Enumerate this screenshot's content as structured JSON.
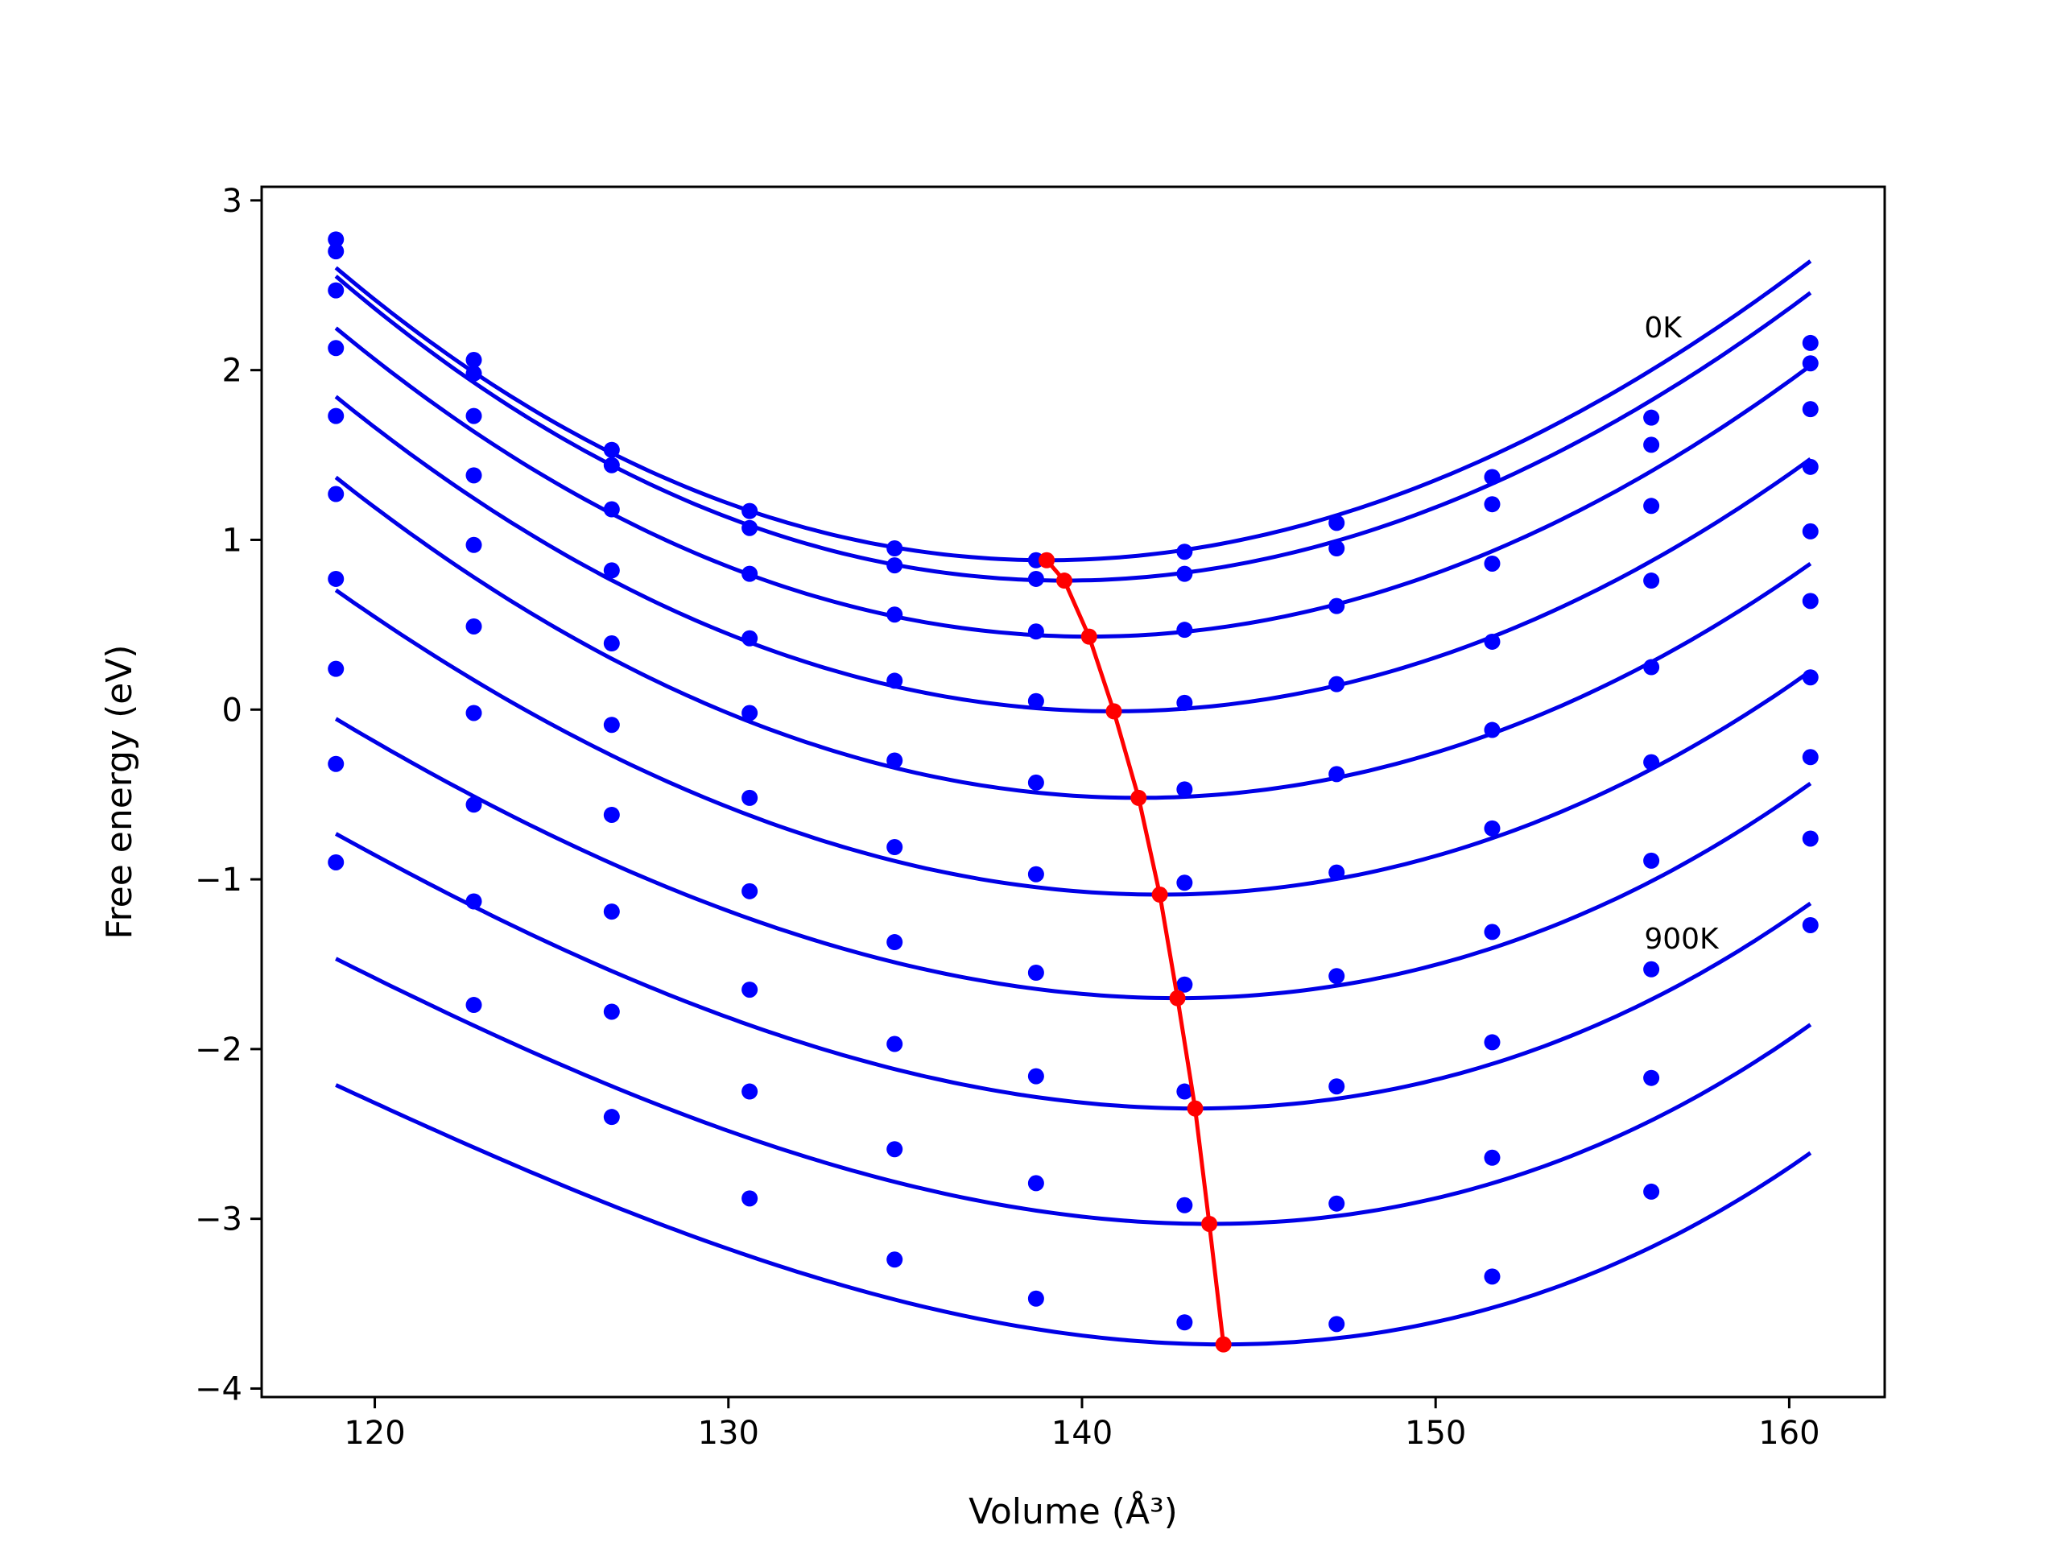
{
  "chart_data": {
    "type": "scatter",
    "xlabel": "Volume (Å³)",
    "ylabel": "Free energy (eV)",
    "xlim": [
      116.8,
      162.7
    ],
    "ylim": [
      -4.05,
      3.08
    ],
    "x_ticks": [
      120,
      130,
      140,
      150,
      160
    ],
    "y_ticks": [
      -4,
      -3,
      -2,
      -1,
      0,
      1,
      2,
      3
    ],
    "x_tick_labels": [
      "120",
      "130",
      "140",
      "150",
      "160"
    ],
    "y_tick_labels": [
      "−4",
      "−3",
      "−2",
      "−1",
      "0",
      "1",
      "2",
      "3"
    ],
    "grid": false,
    "annotations": [
      {
        "text": "0K",
        "x": 155.9,
        "y": 2.25
      },
      {
        "text": "900K",
        "x": 155.9,
        "y": -1.35
      }
    ],
    "volumes": [
      118.9,
      122.8,
      126.7,
      130.6,
      134.7,
      138.7,
      142.9,
      147.2,
      151.6,
      156.1,
      160.6
    ],
    "series": [
      {
        "points_y": [
          2.77,
          2.06,
          1.53,
          1.17,
          0.95,
          0.88,
          0.93,
          1.1,
          1.37,
          1.72,
          2.16
        ],
        "fit": {
          "v0": 139.0,
          "e0": 0.88,
          "k": 0.00403,
          "c": -1.17e-05
        }
      },
      {
        "points_y": [
          2.7,
          1.98,
          1.44,
          1.07,
          0.85,
          0.77,
          0.8,
          0.95,
          1.21,
          1.56,
          2.04
        ],
        "fit": {
          "v0": 139.5,
          "e0": 0.76,
          "k": 0.00402,
          "c": -1e-05
        }
      },
      {
        "points_y": [
          2.47,
          1.73,
          1.18,
          0.8,
          0.56,
          0.46,
          0.47,
          0.61,
          0.86,
          1.2,
          1.77
        ],
        "fit": {
          "v0": 140.2,
          "e0": 0.43,
          "k": 0.00392,
          "c": -4.1e-06
        }
      },
      {
        "points_y": [
          2.13,
          1.38,
          0.82,
          0.42,
          0.17,
          0.05,
          0.04,
          0.15,
          0.4,
          0.76,
          1.43
        ],
        "fit": {
          "v0": 140.9,
          "e0": -0.01,
          "k": 0.00383,
          "c": 0
        }
      },
      {
        "points_y": [
          1.73,
          0.97,
          0.39,
          -0.02,
          -0.3,
          -0.43,
          -0.47,
          -0.38,
          -0.12,
          0.25,
          1.05
        ],
        "fit": {
          "v0": 141.6,
          "e0": -0.52,
          "k": 0.00375,
          "c": 3.8e-06
        }
      },
      {
        "points_y": [
          1.27,
          0.49,
          -0.09,
          -0.52,
          -0.81,
          -0.97,
          -1.02,
          -0.96,
          -0.7,
          -0.31,
          0.64
        ],
        "fit": {
          "v0": 142.2,
          "e0": -1.09,
          "k": 0.00363,
          "c": 1.4e-05
        }
      },
      {
        "points_y": [
          0.77,
          -0.02,
          -0.62,
          -1.07,
          -1.37,
          -1.55,
          -1.62,
          -1.57,
          -1.31,
          -0.89,
          0.19
        ],
        "fit": {
          "v0": 142.7,
          "e0": -1.7,
          "k": 0.0035,
          "c": 2.5e-05
        }
      },
      {
        "points_y": [
          0.24,
          -0.56,
          -1.19,
          -1.65,
          -1.97,
          -2.16,
          -2.25,
          -2.22,
          -1.96,
          -1.53,
          -0.28
        ],
        "fit": {
          "v0": 143.2,
          "e0": -2.35,
          "k": 0.00347,
          "c": 3e-05
        }
      },
      {
        "points_y": [
          -0.32,
          -1.13,
          -1.78,
          -2.25,
          -2.59,
          -2.79,
          -2.92,
          -2.91,
          -2.64,
          -2.17,
          -0.76
        ],
        "fit": {
          "v0": 143.6,
          "e0": -3.03,
          "k": 0.00345,
          "c": 3.6e-05
        }
      },
      {
        "points_y": [
          -0.9,
          -1.74,
          -2.4,
          -2.88,
          -3.24,
          -3.47,
          -3.61,
          -3.62,
          -3.34,
          -2.84,
          -1.27
        ],
        "fit": {
          "v0": 144.0,
          "e0": -3.74,
          "k": 0.00343,
          "c": 4e-05
        }
      }
    ],
    "minima_line": {
      "x": [
        139.0,
        139.5,
        140.2,
        140.9,
        141.6,
        142.2,
        142.7,
        143.2,
        143.6,
        144.0
      ],
      "y": [
        0.88,
        0.76,
        0.43,
        -0.01,
        -0.52,
        -1.09,
        -1.7,
        -2.35,
        -3.03,
        -3.74
      ]
    },
    "colors": {
      "points": "#0000ff",
      "fit_lines": "#0000e6",
      "minima": "#ff0000",
      "axes": "#000000",
      "background": "#ffffff"
    }
  }
}
